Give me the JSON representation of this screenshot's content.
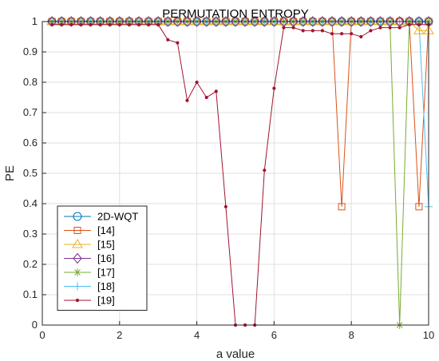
{
  "chart_data": {
    "type": "line",
    "title": "PERMUTATION ENTROPY",
    "xlabel": "a value",
    "ylabel": "PE",
    "xlim": [
      0,
      10
    ],
    "ylim": [
      0,
      1
    ],
    "xticks": [
      0,
      2,
      4,
      6,
      8,
      10
    ],
    "yticks": [
      0,
      0.1,
      0.2,
      0.3,
      0.4,
      0.5,
      0.6,
      0.7,
      0.8,
      0.9,
      1
    ],
    "grid": true,
    "legend_position": "bottom-left",
    "x": [
      0.25,
      0.5,
      0.75,
      1.0,
      1.25,
      1.5,
      1.75,
      2.0,
      2.25,
      2.5,
      2.75,
      3.0,
      3.25,
      3.5,
      3.75,
      4.0,
      4.25,
      4.5,
      4.75,
      5.0,
      5.25,
      5.5,
      5.75,
      6.0,
      6.25,
      6.5,
      6.75,
      7.0,
      7.25,
      7.5,
      7.75,
      8.0,
      8.25,
      8.5,
      8.75,
      9.0,
      9.25,
      9.5,
      9.75,
      10.0
    ],
    "series": [
      {
        "name": "2D-WQT",
        "color": "#0072bd",
        "marker": "circle",
        "values": [
          1,
          1,
          1,
          1,
          1,
          1,
          1,
          1,
          1,
          1,
          1,
          1,
          1,
          1,
          1,
          1,
          1,
          1,
          1,
          1,
          1,
          1,
          1,
          1,
          1,
          1,
          1,
          1,
          1,
          1,
          1,
          1,
          1,
          1,
          1,
          1,
          1,
          1,
          1,
          1
        ]
      },
      {
        "name": "[14]",
        "color": "#d95319",
        "marker": "square",
        "values": [
          1,
          1,
          1,
          1,
          1,
          1,
          1,
          1,
          1,
          1,
          1,
          1,
          1,
          1,
          1,
          1,
          1,
          1,
          1,
          1,
          1,
          1,
          1,
          1,
          1,
          1,
          1,
          1,
          1,
          1,
          0.39,
          1,
          1,
          1,
          1,
          1,
          1,
          1,
          0.39,
          1
        ]
      },
      {
        "name": "[15]",
        "color": "#edb120",
        "marker": "triangle",
        "values": [
          1,
          1,
          1,
          1,
          1,
          1,
          1,
          1,
          1,
          1,
          1,
          1,
          1,
          1,
          1,
          1,
          1,
          1,
          1,
          1,
          1,
          1,
          1,
          1,
          1,
          1,
          1,
          1,
          1,
          1,
          1,
          1,
          1,
          1,
          1,
          1,
          1,
          1,
          0.97,
          0.97
        ]
      },
      {
        "name": "[16]",
        "color": "#7e2f8e",
        "marker": "diamond",
        "values": [
          1,
          1,
          1,
          1,
          1,
          1,
          1,
          1,
          1,
          1,
          1,
          1,
          1,
          1,
          1,
          1,
          1,
          1,
          1,
          1,
          1,
          1,
          1,
          1,
          1,
          1,
          1,
          1,
          1,
          1,
          1,
          1,
          1,
          1,
          1,
          1,
          1,
          1,
          1,
          1
        ]
      },
      {
        "name": "[17]",
        "color": "#77ac30",
        "marker": "asterisk",
        "values": [
          1,
          1,
          1,
          1,
          1,
          1,
          1,
          1,
          1,
          1,
          1,
          1,
          1,
          1,
          1,
          1,
          1,
          1,
          1,
          1,
          1,
          1,
          1,
          1,
          1,
          1,
          1,
          1,
          1,
          1,
          1,
          1,
          1,
          1,
          1,
          1,
          0,
          1,
          1,
          1
        ]
      },
      {
        "name": "[18]",
        "color": "#4dbeee",
        "marker": "plus",
        "values": [
          1,
          1,
          1,
          1,
          1,
          1,
          1,
          1,
          1,
          1,
          1,
          1,
          1,
          1,
          1,
          1,
          1,
          1,
          1,
          1,
          1,
          1,
          1,
          1,
          1,
          1,
          1,
          1,
          1,
          1,
          1,
          1,
          1,
          1,
          1,
          1,
          1,
          1,
          1,
          0.39
        ]
      },
      {
        "name": "[19]",
        "color": "#a2142f",
        "marker": "point",
        "values": [
          0.99,
          0.99,
          0.99,
          0.99,
          0.99,
          0.99,
          0.99,
          0.99,
          0.99,
          0.99,
          0.99,
          0.99,
          0.94,
          0.93,
          0.74,
          0.8,
          0.75,
          0.77,
          0.39,
          0,
          0,
          0,
          0.51,
          0.78,
          0.98,
          0.98,
          0.97,
          0.97,
          0.97,
          0.96,
          0.96,
          0.96,
          0.95,
          0.97,
          0.98,
          0.98,
          0.98,
          0.99,
          0.99,
          0.99
        ]
      }
    ]
  }
}
